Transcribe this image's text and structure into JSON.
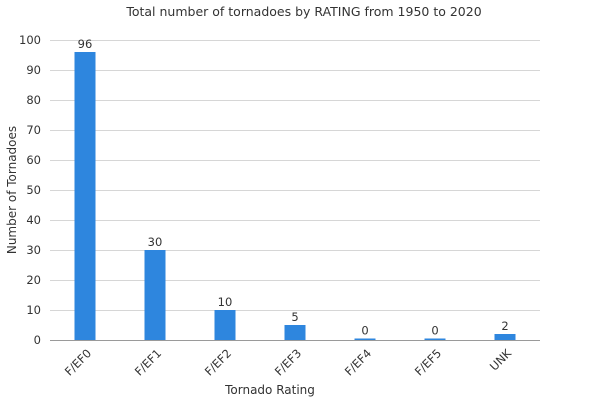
{
  "chart_data": {
    "type": "bar",
    "title": "Total number of tornadoes by RATING from 1950 to 2020",
    "xlabel": "Tornado Rating",
    "ylabel": "Number of Tornadoes",
    "categories": [
      "F/EF0",
      "F/EF1",
      "F/EF2",
      "F/EF3",
      "F/EF4",
      "F/EF5",
      "UNK"
    ],
    "values": [
      96,
      30,
      10,
      5,
      0,
      0,
      2
    ],
    "data_labels": [
      "96",
      "30",
      "10",
      "5",
      "0",
      "0",
      "2"
    ],
    "ylim": [
      0,
      100
    ],
    "yticks": [
      "0",
      "10",
      "20",
      "30",
      "40",
      "50",
      "60",
      "70",
      "80",
      "90",
      "100"
    ],
    "grid": true,
    "bar_color": "#2e86de"
  }
}
